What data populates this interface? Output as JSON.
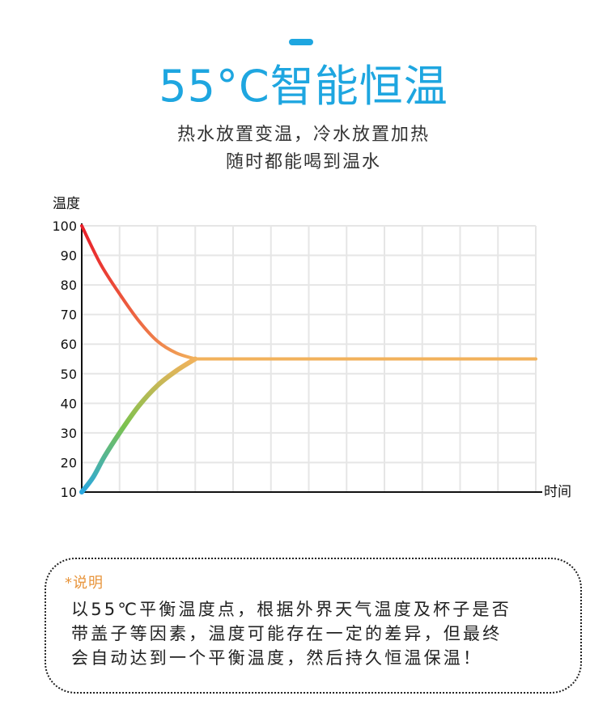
{
  "header": {
    "title": "55°C智能恒温",
    "subtitle_line1": "热水放置变温，冷水放置加热",
    "subtitle_line2": "随时都能喝到温水"
  },
  "colors": {
    "accent": "#1ea6e0",
    "note_title": "#e8953c",
    "grid": "#e6e6e6",
    "axis": "#111111",
    "hot": "#e8202a",
    "cold": "#2aa8e0",
    "steady": "#f2b25c"
  },
  "chart_data": {
    "type": "line",
    "title": "",
    "xlabel": "时间",
    "ylabel": "温度",
    "yticks": [
      "100",
      "90",
      "80",
      "70",
      "60",
      "50",
      "40",
      "30",
      "20",
      "10"
    ],
    "ytick_values": [
      100,
      90,
      80,
      70,
      60,
      50,
      40,
      30,
      20,
      10
    ],
    "ylim": [
      10,
      100
    ],
    "xlim": [
      0,
      12
    ],
    "grid": true,
    "legend": "none",
    "series": [
      {
        "color_start": "#e8202a",
        "color_end": "#f2b25c",
        "x": [
          0,
          0.5,
          1,
          1.5,
          2,
          2.5,
          3,
          12
        ],
        "y": [
          100,
          87,
          77,
          68,
          61,
          57,
          55,
          55
        ]
      },
      {
        "color_start": "#2aa8e0",
        "color_end": "#f2b25c",
        "x": [
          0,
          0.3,
          0.6,
          1,
          1.5,
          2,
          2.5,
          3,
          12
        ],
        "y": [
          10,
          15,
          22,
          30,
          39,
          46,
          51,
          55,
          55
        ]
      }
    ]
  },
  "note": {
    "title": "*说明",
    "line1": "以55℃平衡温度点，根据外界天气温度及杯子是否",
    "line2": "带盖子等因素，温度可能存在一定的差异，但最终",
    "line3": "会自动达到一个平衡温度，然后持久恒温保温！"
  }
}
